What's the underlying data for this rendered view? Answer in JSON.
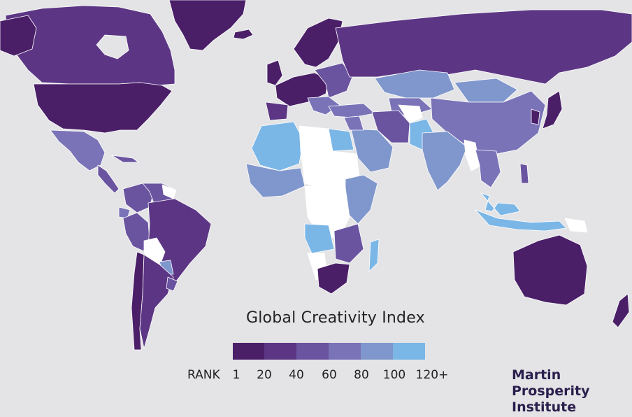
{
  "legend": {
    "title": "Global Creativity Index",
    "rank_label": "RANK",
    "ticks": [
      "1",
      "20",
      "40",
      "60",
      "80",
      "100",
      "120+"
    ],
    "colors": [
      "#4a1f68",
      "#5c3684",
      "#6a54a0",
      "#7a73b8",
      "#7f97cc",
      "#7ab6e6"
    ]
  },
  "logo": {
    "line1": "Martin",
    "line2": "Prosperity",
    "line3": "Institute"
  },
  "colors": {
    "no_data": "#ffffff",
    "ocean": "#e4e4e6"
  }
}
